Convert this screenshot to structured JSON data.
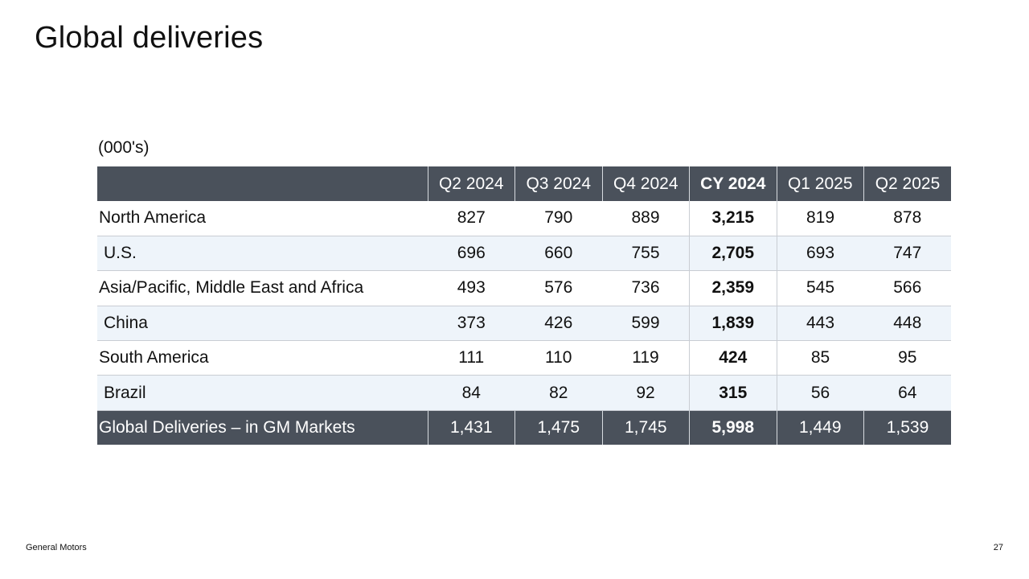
{
  "slide": {
    "title": "Global deliveries",
    "units": "(000's)"
  },
  "table": {
    "headers": [
      "",
      "Q2 2024",
      "Q3 2024",
      "Q4 2024",
      "CY 2024",
      "Q1 2025",
      "Q2 2025"
    ],
    "rows": [
      {
        "label": "North America",
        "values": [
          "827",
          "790",
          "889",
          "3,215",
          "819",
          "878"
        ]
      },
      {
        "label": "U.S.",
        "values": [
          "696",
          "660",
          "755",
          "2,705",
          "693",
          "747"
        ]
      },
      {
        "label": "Asia/Pacific, Middle East and Africa",
        "values": [
          "493",
          "576",
          "736",
          "2,359",
          "545",
          "566"
        ]
      },
      {
        "label": "China",
        "values": [
          "373",
          "426",
          "599",
          "1,839",
          "443",
          "448"
        ]
      },
      {
        "label": "South America",
        "values": [
          "111",
          "110",
          "119",
          "424",
          "85",
          "95"
        ]
      },
      {
        "label": "Brazil",
        "values": [
          "84",
          "82",
          "92",
          "315",
          "56",
          "64"
        ]
      }
    ],
    "total": {
      "label": "Global Deliveries – in GM Markets",
      "values": [
        "1,431",
        "1,475",
        "1,745",
        "5,998",
        "1,449",
        "1,539"
      ]
    }
  },
  "footer": {
    "company": "General Motors",
    "page_number": "27"
  },
  "colors": {
    "header_bg": "#4a515b",
    "subrow_bg": "#eef4fa"
  }
}
